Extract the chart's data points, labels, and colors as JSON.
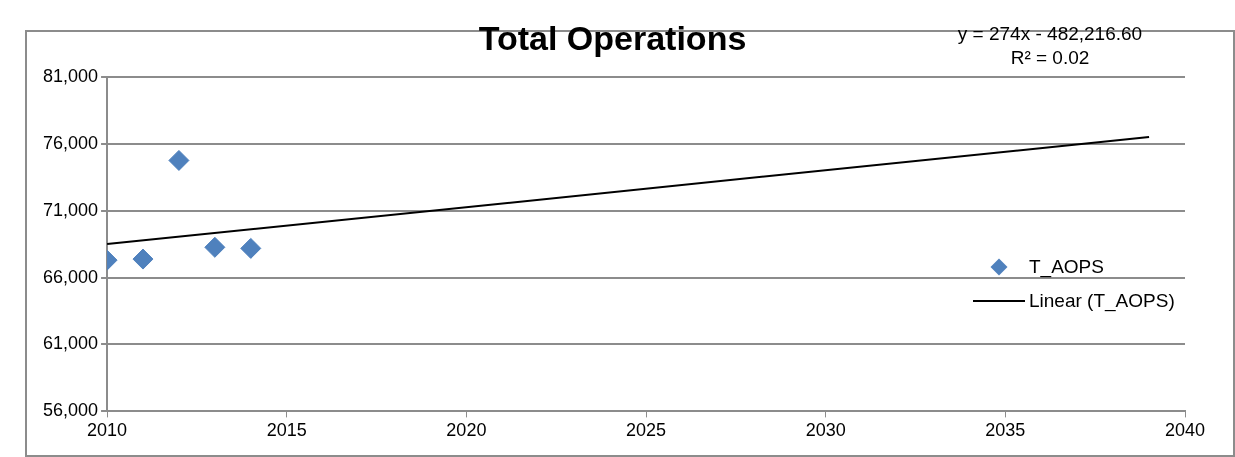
{
  "chart_data": {
    "type": "scatter",
    "title": "Total Operations",
    "x": [
      2010,
      2011,
      2012,
      2013,
      2014
    ],
    "marker": "diamond",
    "series": [
      {
        "name": "T_AOPS",
        "color": "#4f81bd",
        "values": [
          67300,
          67380,
          74750,
          68260,
          68180
        ]
      },
      {
        "name": "Linear (T_AOPS)",
        "type": "line",
        "color": "#000000",
        "x": [
          2010,
          2039
        ],
        "values": [
          68500,
          76500
        ],
        "marker": "none",
        "line_style": "solid"
      }
    ],
    "xlim": [
      2010,
      2040
    ],
    "xticks": [
      2010,
      2015,
      2020,
      2025,
      2030,
      2035,
      2040
    ],
    "ylim": [
      56000,
      81000
    ],
    "yticks": [
      {
        "value": 56000,
        "label": "56,000"
      },
      {
        "value": 61000,
        "label": "61,000"
      },
      {
        "value": 66000,
        "label": "66,000"
      },
      {
        "value": 71000,
        "label": "71,000"
      },
      {
        "value": 76000,
        "label": "76,000"
      },
      {
        "value": 81000,
        "label": "81,000"
      }
    ],
    "grid": "y",
    "legend": "right",
    "annotations": [
      "y = 274x - 482,216.60",
      "R² = 0.02"
    ]
  }
}
